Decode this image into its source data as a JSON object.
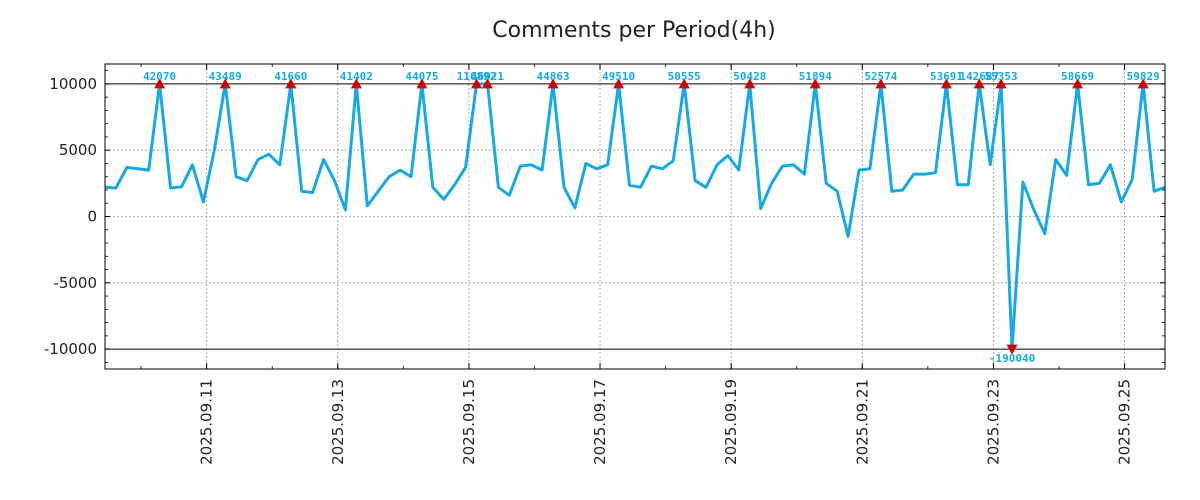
{
  "chart_data": {
    "type": "line",
    "title": "Comments per Period(4h)",
    "xlabel": "",
    "ylabel": "",
    "ylim": [
      -11500,
      11500
    ],
    "xlim": [
      0,
      97
    ],
    "yticks": [
      -10000,
      -5000,
      0,
      5000,
      10000
    ],
    "ytick_labels": [
      "-10000",
      "-5000",
      "0",
      "5000",
      "10000"
    ],
    "xticks": [
      {
        "x": 9.3,
        "label": "2025.09.11"
      },
      {
        "x": 21.3,
        "label": "2025.09.13"
      },
      {
        "x": 33.3,
        "label": "2025.09.15"
      },
      {
        "x": 45.3,
        "label": "2025.09.17"
      },
      {
        "x": 57.3,
        "label": "2025.09.19"
      },
      {
        "x": 69.3,
        "label": "2025.09.21"
      },
      {
        "x": 81.3,
        "label": "2025.09.23"
      },
      {
        "x": 93.3,
        "label": "2025.09.25"
      }
    ],
    "clip_limits": [
      10000,
      -10000
    ],
    "colors": {
      "line": "#17a9e6",
      "marker": "#d10000",
      "label": "#17a9e6",
      "clip_line": "#000000",
      "grid": "#999999",
      "frame": "#000000"
    },
    "series": [
      {
        "name": "comments",
        "values": [
          2200,
          2150,
          3700,
          3600,
          3500,
          10000,
          2150,
          2250,
          3900,
          1100,
          5000,
          10000,
          3000,
          2700,
          4300,
          4700,
          3900,
          10000,
          1900,
          1800,
          4300,
          2700,
          500,
          10000,
          800,
          1900,
          3000,
          3500,
          3000,
          10000,
          2200,
          1300,
          2400,
          3700,
          10000,
          10000,
          2200,
          1600,
          3800,
          3900,
          3500,
          10000,
          2200,
          650,
          4000,
          3600,
          3900,
          10000,
          2350,
          2200,
          3800,
          3600,
          4200,
          10000,
          2700,
          2200,
          3900,
          4600,
          3500,
          10000,
          600,
          2500,
          3800,
          3900,
          3200,
          10000,
          2500,
          1900,
          -1500,
          3500,
          3600,
          10000,
          1900,
          2000,
          3200,
          3200,
          3300,
          10000,
          2400,
          2400,
          10000,
          3900,
          10000,
          -10000,
          2600,
          500,
          -1300,
          4300,
          3100,
          10000,
          2400,
          2500,
          3900,
          1100,
          2800,
          10000,
          1900,
          2200
        ]
      }
    ],
    "annotations": [
      {
        "x": 5,
        "label": "42070",
        "clipped": "top"
      },
      {
        "x": 11,
        "label": "43489",
        "clipped": "top"
      },
      {
        "x": 17,
        "label": "41660",
        "clipped": "top"
      },
      {
        "x": 23,
        "label": "41402",
        "clipped": "top"
      },
      {
        "x": 29,
        "label": "44075",
        "clipped": "top"
      },
      {
        "x": 34,
        "label": "116892",
        "clipped": "top"
      },
      {
        "x": 35,
        "label": "46021",
        "clipped": "top"
      },
      {
        "x": 41,
        "label": "44863",
        "clipped": "top"
      },
      {
        "x": 47,
        "label": "49510",
        "clipped": "top"
      },
      {
        "x": 53,
        "label": "50555",
        "clipped": "top"
      },
      {
        "x": 59,
        "label": "50428",
        "clipped": "top"
      },
      {
        "x": 65,
        "label": "51894",
        "clipped": "top"
      },
      {
        "x": 71,
        "label": "52574",
        "clipped": "top"
      },
      {
        "x": 77,
        "label": "53691",
        "clipped": "top"
      },
      {
        "x": 80,
        "label": "142687",
        "clipped": "top"
      },
      {
        "x": 82,
        "label": "55353",
        "clipped": "top"
      },
      {
        "x": 83,
        "label": "-190040",
        "clipped": "bottom"
      },
      {
        "x": 89,
        "label": "58669",
        "clipped": "top"
      },
      {
        "x": 95,
        "label": "59829",
        "clipped": "top"
      }
    ]
  }
}
